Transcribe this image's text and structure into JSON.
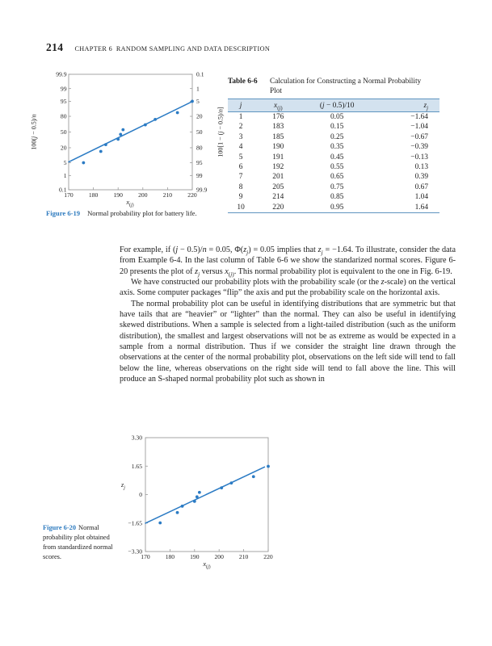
{
  "page": {
    "number": "214",
    "chapter_header": "CHAPTER 6  RANDOM SAMPLING AND DATA DESCRIPTION"
  },
  "colors": {
    "accent_blue": "#2b7bc4",
    "figure_label_blue": "#2e7bbf",
    "table_rule": "#5f94c0",
    "table_band": "#d3e2ef",
    "frame_gray": "#9b9b9b",
    "text": "#1c1c1c"
  },
  "figure19": {
    "label": "Figure 6-19",
    "caption": "Normal probability plot for battery life."
  },
  "figure20": {
    "label": "Figure 6-20",
    "caption": "Normal probability plot obtained from standardized normal scores."
  },
  "table66": {
    "label": "Table 6-6",
    "title": "Calculation for Constructing a Normal Probability Plot",
    "headers": [
      "*j*",
      "*x*_{(*j*)}",
      "(*j* − 0.5)/10",
      "*z*_{*j*}"
    ],
    "rows": [
      [
        "1",
        "176",
        "0.05",
        "−1.64"
      ],
      [
        "2",
        "183",
        "0.15",
        "−1.04"
      ],
      [
        "3",
        "185",
        "0.25",
        "−0.67"
      ],
      [
        "4",
        "190",
        "0.35",
        "−0.39"
      ],
      [
        "5",
        "191",
        "0.45",
        "−0.13"
      ],
      [
        "6",
        "192",
        "0.55",
        "0.13"
      ],
      [
        "7",
        "201",
        "0.65",
        "0.39"
      ],
      [
        "8",
        "205",
        "0.75",
        "0.67"
      ],
      [
        "9",
        "214",
        "0.85",
        "1.04"
      ],
      [
        "10",
        "220",
        "0.95",
        "1.64"
      ]
    ]
  },
  "body": {
    "paragraphs": [
      {
        "indent": false,
        "text": "For example, if (*j* − 0.5)/*n* = 0.05, Φ(*z*_{*j*}) = 0.05 implies that *z*_{*j*} = −1.64. To illustrate, consider the data from Example 6-4. In the last column of Table 6-6 we show the standarized normal scores. Figure 6-20 presents the plot of *z*_{*j*} versus *x*_{(*j*)}. This normal probability plot is equivalent to the one in Fig. 6-19."
      },
      {
        "indent": true,
        "text": "We have constructed our probability plots with the probability scale (or the *z*-scale) on the vertical axis. Some computer packages “flip” the axis and put the probability scale on the horizontal axis."
      },
      {
        "indent": true,
        "text": "The normal probability plot can be useful in identifying distributions that are symmetric but that have tails that are “heavier” or “lighter” than the normal. They can also be useful in identifying skewed distributions. When a sample is selected from a light-tailed distribution (such as the uniform distribution), the smallest and largest observations will not be as extreme as would be expected in a sample from a normal distribution. Thus if we consider the straight line drawn through the observations at the center of the normal probability plot, observations on the left side will tend to fall below the line, whereas observations on the right side will tend to fall above the line. This will produce an S-shaped normal probability plot such as shown in"
      }
    ]
  },
  "chart_data": [
    {
      "id": "fig19",
      "type": "scatter",
      "title": "Normal probability plot for battery life (Figure 6-19)",
      "y_scale": "normal-probability",
      "xlabel": "*x*_{(*j*)}",
      "ylabel_left": "100(*j* − 0.5)/*n*",
      "ylabel_right": "100[1 − (*j* − 0.5)/*n*]",
      "xlim": [
        170,
        220
      ],
      "x_ticks": [
        170,
        180,
        190,
        200,
        210,
        220
      ],
      "prob_ticks": [
        0.1,
        1,
        5,
        20,
        50,
        80,
        95,
        99,
        99.9
      ],
      "left_tick_labels": [
        "0.1",
        "1",
        "5",
        "20",
        "50",
        "80",
        "95",
        "99",
        "99.9"
      ],
      "right_tick_labels": [
        "99.9",
        "99",
        "95",
        "80",
        "50",
        "20",
        "5",
        "1",
        "0.1"
      ],
      "points_x": [
        176,
        183,
        185,
        190,
        191,
        192,
        201,
        205,
        214,
        220
      ],
      "points_pct": [
        5,
        15,
        25,
        35,
        45,
        55,
        65,
        75,
        85,
        95
      ],
      "fit_line": {
        "x": [
          170,
          219.5
        ],
        "z": [
          -1.6,
          1.6
        ]
      }
    },
    {
      "id": "fig20",
      "type": "scatter",
      "title": "Normal probability plot obtained from standardized normal scores (Figure 6-20)",
      "xlabel": "*x*_{(*j*)}",
      "ylabel": "*z*_{*j*}",
      "xlim": [
        170,
        220
      ],
      "ylim": [
        -3.3,
        3.3
      ],
      "x_ticks": [
        170,
        180,
        190,
        200,
        210,
        220
      ],
      "y_tick_values": [
        3.3,
        1.65,
        0,
        -1.65,
        -3.3
      ],
      "y_tick_labels": [
        "3.30",
        "1.65",
        "0",
        "−1.65",
        "−3.30"
      ],
      "points_x": [
        176,
        183,
        185,
        190,
        191,
        192,
        201,
        205,
        214,
        220
      ],
      "points_y": [
        -1.64,
        -1.04,
        -0.67,
        -0.39,
        -0.13,
        0.13,
        0.39,
        0.67,
        1.04,
        1.64
      ],
      "fit_line": {
        "x": [
          170,
          218.5
        ],
        "y": [
          -1.66,
          1.6
        ]
      }
    }
  ]
}
